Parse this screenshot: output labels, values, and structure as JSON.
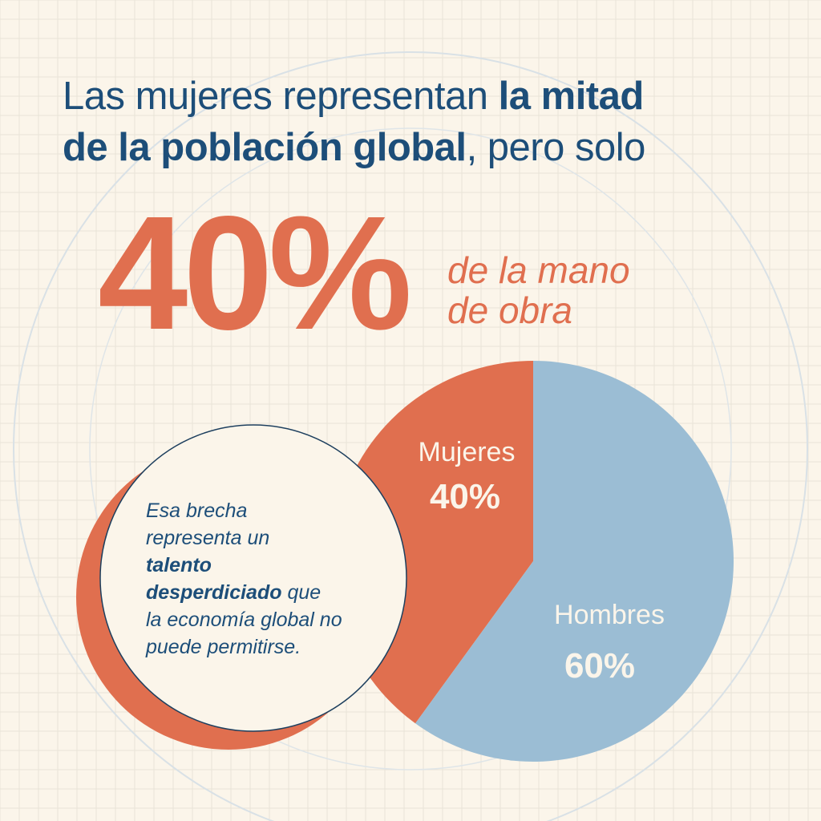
{
  "title": {
    "line1_regular": "Las mujeres representan ",
    "line1_bold": "la mitad",
    "line2_bold": "de la población global",
    "line2_regular": ", pero solo"
  },
  "headline": {
    "value": "40%",
    "caption_line1": "de la mano",
    "caption_line2": "de obra"
  },
  "note": {
    "line1": "Esa brecha",
    "line2": "representa un",
    "bold1": "talento",
    "bold2": "desperdiciado",
    "after_bold": " que",
    "line5": "la economía global no",
    "line6": "puede permitirse."
  },
  "colors": {
    "background": "#fbf5ea",
    "navy": "#1d4e79",
    "orange": "#e06f4f",
    "blue": "#9bbdd4"
  },
  "chart_data": {
    "type": "pie",
    "title": "",
    "slices": [
      {
        "label": "Mujeres",
        "value": 40,
        "display": "40%",
        "color": "#e06f4f"
      },
      {
        "label": "Hombres",
        "value": 60,
        "display": "60%",
        "color": "#9bbdd4"
      }
    ]
  }
}
